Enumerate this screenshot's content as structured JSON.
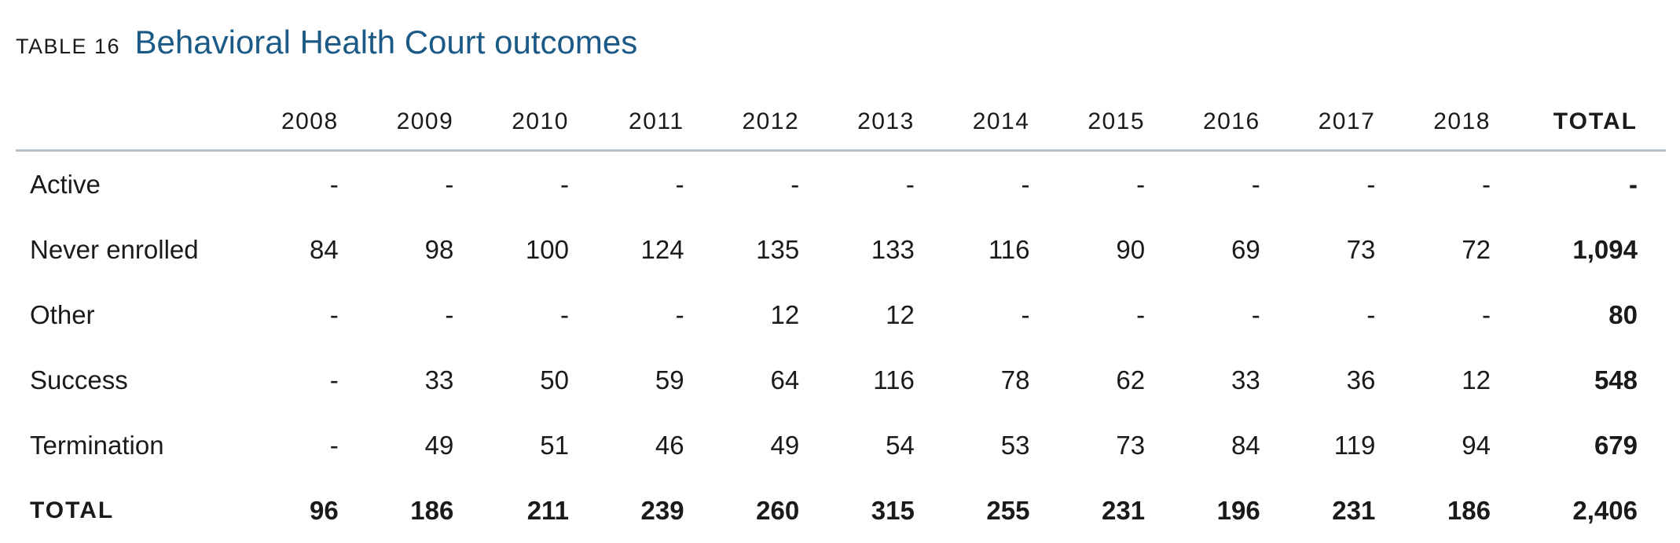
{
  "header": {
    "table_label": "TABLE 16",
    "title": "Behavioral Health Court outcomes"
  },
  "table": {
    "columns": [
      "2008",
      "2009",
      "2010",
      "2011",
      "2012",
      "2013",
      "2014",
      "2015",
      "2016",
      "2017",
      "2018",
      "TOTAL"
    ],
    "rows": [
      {
        "label": "Active",
        "values": [
          "-",
          "-",
          "-",
          "-",
          "-",
          "-",
          "-",
          "-",
          "-",
          "-",
          "-"
        ],
        "total": "-"
      },
      {
        "label": "Never enrolled",
        "values": [
          "84",
          "98",
          "100",
          "124",
          "135",
          "133",
          "116",
          "90",
          "69",
          "73",
          "72"
        ],
        "total": "1,094"
      },
      {
        "label": "Other",
        "values": [
          "-",
          "-",
          "-",
          "-",
          "12",
          "12",
          "-",
          "-",
          "-",
          "-",
          "-"
        ],
        "total": "80"
      },
      {
        "label": "Success",
        "values": [
          "-",
          "33",
          "50",
          "59",
          "64",
          "116",
          "78",
          "62",
          "33",
          "36",
          "12"
        ],
        "total": "548"
      },
      {
        "label": "Termination",
        "values": [
          "-",
          "49",
          "51",
          "46",
          "49",
          "54",
          "53",
          "73",
          "84",
          "119",
          "94"
        ],
        "total": "679"
      },
      {
        "label": "TOTAL",
        "values": [
          "96",
          "186",
          "211",
          "239",
          "260",
          "315",
          "255",
          "231",
          "196",
          "231",
          "186"
        ],
        "total": "2,406"
      }
    ]
  },
  "colors": {
    "title": "#1b5a86",
    "header_rule": "#b9c2cc",
    "text": "#1a1a1a"
  }
}
